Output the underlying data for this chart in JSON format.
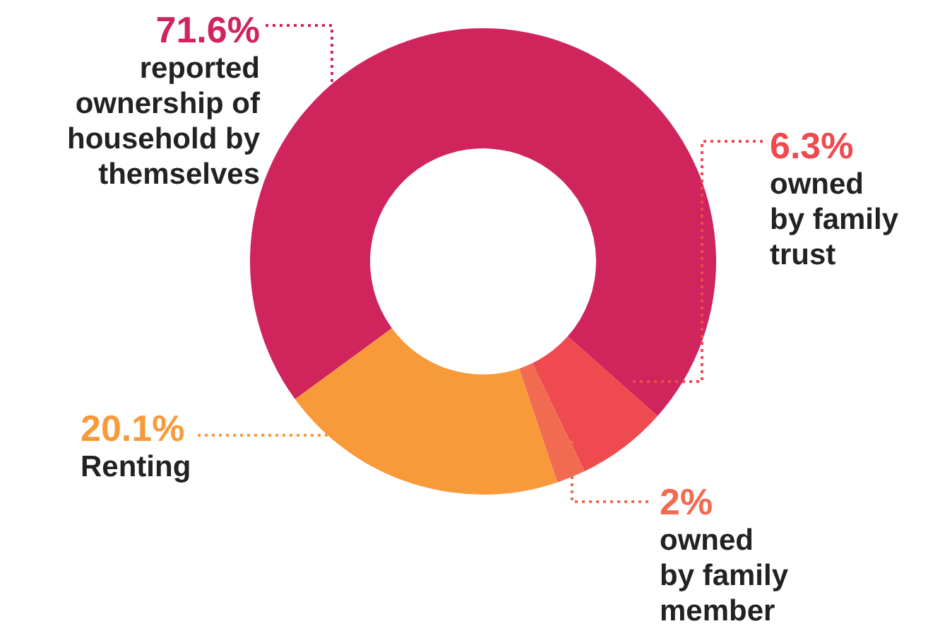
{
  "chart_data": {
    "type": "donut",
    "categories": [
      "reported ownership of household by themselves",
      "owned by family trust",
      "owned by family member",
      "Renting"
    ],
    "values": [
      71.6,
      6.3,
      2,
      20.1
    ],
    "colors": [
      "#d0245c",
      "#ee4a4f",
      "#f26a50",
      "#f89a3a"
    ],
    "value_labels": [
      "71.6%",
      "6.3%",
      "2%",
      "20.1%"
    ]
  }
}
